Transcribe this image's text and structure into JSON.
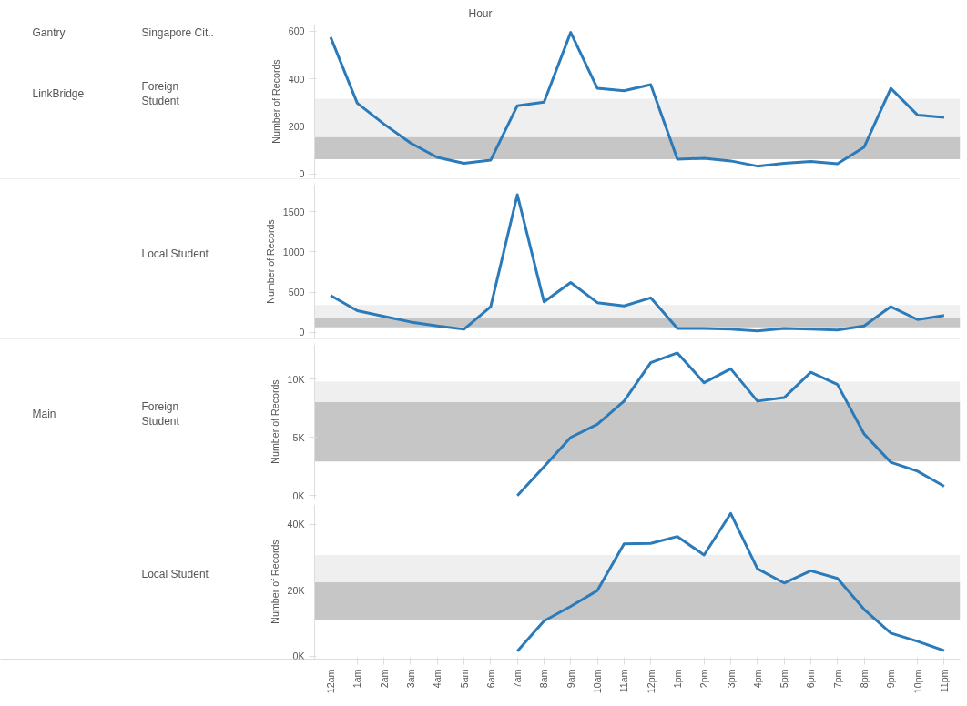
{
  "chart_data": [
    {
      "type": "line",
      "xlabel": "Hour",
      "ylabel": "Number of Records",
      "annotations": [
        "Gantry",
        "Singapore Cit..",
        "LinkBridge",
        "Foreign Student"
      ],
      "tick_labels": "y",
      "grid": false,
      "categories": [
        null,
        null,
        null,
        null,
        null,
        null,
        null,
        null,
        null,
        null,
        null,
        null,
        null,
        null,
        null,
        null,
        null,
        null,
        null,
        null,
        null,
        null,
        null,
        null
      ],
      "series": [
        {
          "color": "#2b7bba",
          "values": [
            575,
            298,
            210,
            130,
            70,
            45,
            58,
            287,
            302,
            595,
            360,
            350,
            376,
            62,
            66,
            55,
            33,
            45,
            53,
            43,
            113,
            360,
            248,
            238
          ]
        }
      ],
      "ylim": [
        -20,
        630
      ],
      "yticks": [
        0,
        200,
        400,
        600
      ],
      "bands": [
        {
          "axis": "y",
          "from": 62,
          "to": 156,
          "color": "#c6c6c6"
        },
        {
          "axis": "y",
          "from": 156,
          "to": 316,
          "color": "#efefef"
        }
      ]
    },
    {
      "type": "line",
      "ylabel": "Number of Records",
      "annotations": [
        "Local Student"
      ],
      "tick_labels": "y",
      "grid": false,
      "categories": [
        null,
        null,
        null,
        null,
        null,
        null,
        null,
        null,
        null,
        null,
        null,
        null,
        null,
        null,
        null,
        null,
        null,
        null,
        null,
        null,
        null,
        null,
        null,
        null
      ],
      "series": [
        {
          "color": "#2b7bba",
          "values": [
            460,
            270,
            200,
            130,
            80,
            40,
            320,
            1710,
            380,
            620,
            370,
            330,
            430,
            50,
            50,
            40,
            20,
            50,
            40,
            30,
            80,
            320,
            160,
            210
          ]
        }
      ],
      "ylim": [
        -80,
        1840
      ],
      "yticks": [
        0,
        500,
        1000,
        1500
      ],
      "bands": [
        {
          "axis": "y",
          "from": 63,
          "to": 184,
          "color": "#c6c6c6"
        },
        {
          "axis": "y",
          "from": 184,
          "to": 342,
          "color": "#efefef"
        }
      ]
    },
    {
      "type": "line",
      "ylabel": "Number of Records",
      "annotations": [
        "Main",
        "Foreign Student"
      ],
      "tick_labels": "y",
      "grid": false,
      "categories": [
        null,
        null,
        null,
        null,
        null,
        null,
        null,
        null,
        null,
        null,
        null,
        null,
        null,
        null,
        null,
        null,
        null,
        null,
        null,
        null,
        null,
        null,
        null,
        null
      ],
      "series": [
        {
          "color": "#2b7bba",
          "values": [
            null,
            null,
            null,
            null,
            null,
            null,
            null,
            0,
            2480,
            5000,
            6130,
            8120,
            11430,
            12260,
            9700,
            10900,
            8120,
            8420,
            10600,
            9550,
            5300,
            2860,
            2100,
            790
          ]
        }
      ],
      "ylim": [
        -300,
        13000
      ],
      "yticks": [
        {
          "value": 0,
          "label": "0K"
        },
        {
          "value": 5000,
          "label": "5K"
        },
        {
          "value": 10000,
          "label": "10K"
        }
      ],
      "bands": [
        {
          "axis": "y",
          "from": 2930,
          "to": 8050,
          "color": "#c6c6c6"
        },
        {
          "axis": "y",
          "from": 8050,
          "to": 9810,
          "color": "#efefef"
        }
      ]
    },
    {
      "type": "line",
      "ylabel": "Number of Records",
      "annotations": [
        "Local Student"
      ],
      "grid": false,
      "categories": [
        "12am",
        "1am",
        "2am",
        "3am",
        "4am",
        "5am",
        "6am",
        "7am",
        "8am",
        "9am",
        "10am",
        "11am",
        "12pm",
        "1pm",
        "2pm",
        "3pm",
        "4pm",
        "5pm",
        "6pm",
        "7pm",
        "8pm",
        "9pm",
        "10pm",
        "11pm"
      ],
      "series": [
        {
          "color": "#2b7bba",
          "values": [
            null,
            null,
            null,
            null,
            null,
            null,
            null,
            1500,
            10700,
            15100,
            19900,
            34100,
            34200,
            36300,
            30700,
            43300,
            26500,
            22200,
            25900,
            23600,
            14200,
            7000,
            4500,
            1700
          ]
        }
      ],
      "ylim": [
        -900,
        46000
      ],
      "yticks": [
        {
          "value": 0,
          "label": "0K"
        },
        {
          "value": 20000,
          "label": "20K"
        },
        {
          "value": 40000,
          "label": "40K"
        }
      ],
      "bands": [
        {
          "axis": "y",
          "from": 10900,
          "to": 22500,
          "color": "#c6c6c6"
        },
        {
          "axis": "y",
          "from": 22500,
          "to": 30660,
          "color": "#efefef"
        }
      ]
    }
  ]
}
